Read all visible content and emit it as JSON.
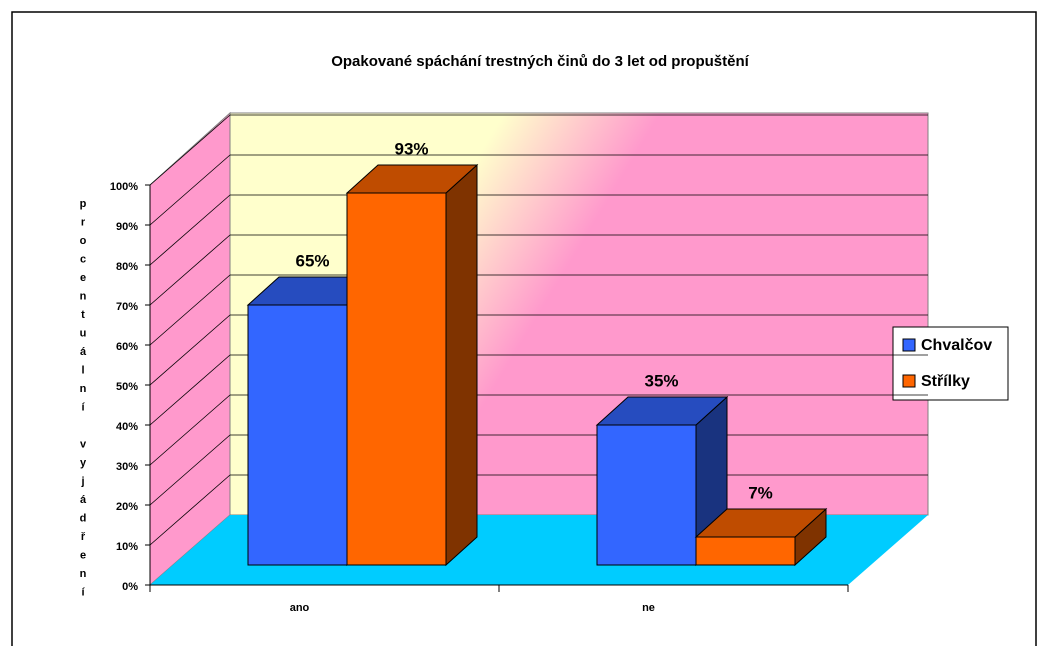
{
  "chart_data": {
    "type": "bar3d",
    "title": "Opakované spáchání trestných činů do 3 let od propuštění",
    "y_label": "procentuální vyjádření",
    "categories": [
      "ano",
      "ne"
    ],
    "series": [
      {
        "name": "Chvalčov",
        "color": "#3366ff",
        "values": [
          65,
          35
        ],
        "value_labels": [
          "65%",
          "35%"
        ]
      },
      {
        "name": "Střílky",
        "color": "#ff6600",
        "values": [
          93,
          7
        ],
        "value_labels": [
          "93%",
          "7%"
        ]
      }
    ],
    "ylim": [
      0,
      100
    ],
    "yticks": [
      {
        "value": 0,
        "label": "0%"
      },
      {
        "value": 10,
        "label": "10%"
      },
      {
        "value": 20,
        "label": "20%"
      },
      {
        "value": 30,
        "label": "30%"
      },
      {
        "value": 40,
        "label": "40%"
      },
      {
        "value": 50,
        "label": "50%"
      },
      {
        "value": 60,
        "label": "60%"
      },
      {
        "value": 70,
        "label": "70%"
      },
      {
        "value": 80,
        "label": "80%"
      },
      {
        "value": 90,
        "label": "90%"
      },
      {
        "value": 100,
        "label": "100%"
      }
    ],
    "grid": true,
    "legend": "right"
  }
}
